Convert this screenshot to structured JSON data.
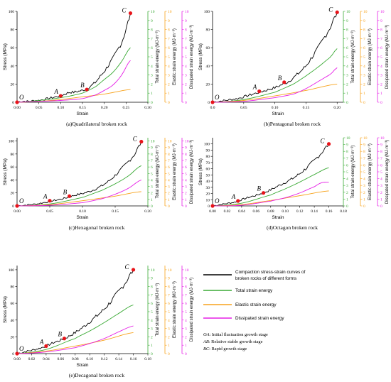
{
  "colors": {
    "stress": "#000000",
    "total": "#3aaa35",
    "elastic": "#f7a21b",
    "dissipated": "#e61ee6",
    "marker": "#e8141a"
  },
  "shared_axis_labels": {
    "y_stress": "Stress (MPa)",
    "x": "Strain",
    "y_total": "Total strain energy (MJ·m⁻³)",
    "y_elastic": "Elastic strain energy (MJ·m⁻³)",
    "y_dissipated": "Dissipated strain energy (MJ·m⁻³)"
  },
  "legend": {
    "stress_line1": "Compaction stress-strain curves of",
    "stress_line2": "broken rocks of different forms",
    "total": "Total strain energy",
    "elastic": "Elastic strain energy",
    "dissipated": "Dissipated strain energy"
  },
  "stage_notes": [
    {
      "key": "OA",
      "text": ": Initial fluctuation growth stage"
    },
    {
      "key": "AB",
      "text": ": Relative stable growth stage"
    },
    {
      "key": "BC",
      "text": ": Rapid growth stage"
    }
  ],
  "chart_data": [
    {
      "type": "line",
      "caption": "(a)Quadrilateral broken rock",
      "xlim": [
        0,
        0.3
      ],
      "xticks": [
        "0.00",
        "0.05",
        "0.10",
        "0.15",
        "0.20",
        "0.25",
        "0.30"
      ],
      "ylim_stress": [
        0,
        100
      ],
      "yticks_stress": [
        "0",
        "20",
        "40",
        "60",
        "80",
        "100"
      ],
      "ylim_energy": [
        0,
        10
      ],
      "yticks_energy": [
        "0",
        "1",
        "2",
        "3",
        "4",
        "5",
        "6",
        "7",
        "8",
        "9",
        "10"
      ],
      "x_end": 0.26,
      "series": [
        {
          "name": "Stress",
          "axis": "stress",
          "x": [
            0,
            0.01,
            0.02,
            0.03,
            0.04,
            0.05,
            0.06,
            0.07,
            0.08,
            0.09,
            0.1,
            0.11,
            0.12,
            0.13,
            0.14,
            0.15,
            0.16,
            0.17,
            0.18,
            0.19,
            0.2,
            0.21,
            0.22,
            0.23,
            0.24,
            0.25,
            0.26
          ],
          "y": [
            0,
            1,
            1,
            1,
            2,
            2,
            3,
            4,
            5,
            6,
            7,
            9,
            11,
            11,
            12,
            13,
            15,
            18,
            22,
            28,
            34,
            41,
            48,
            57,
            66,
            80,
            98
          ]
        },
        {
          "name": "Total strain energy",
          "axis": "energy",
          "x": [
            0,
            0.05,
            0.1,
            0.15,
            0.18,
            0.2,
            0.22,
            0.24,
            0.26
          ],
          "y": [
            0,
            0.2,
            0.5,
            1.0,
            1.7,
            2.5,
            3.3,
            4.5,
            6.0
          ]
        },
        {
          "name": "Elastic strain energy",
          "axis": "energy",
          "x": [
            0,
            0.05,
            0.1,
            0.15,
            0.2,
            0.26
          ],
          "y": [
            0,
            0.1,
            0.3,
            0.6,
            0.9,
            1.4
          ]
        },
        {
          "name": "Dissipated strain energy",
          "axis": "energy",
          "x": [
            0,
            0.05,
            0.1,
            0.15,
            0.18,
            0.2,
            0.22,
            0.24,
            0.26
          ],
          "y": [
            0,
            0.1,
            0.2,
            0.4,
            0.8,
            1.3,
            1.9,
            3.0,
            4.6
          ]
        }
      ],
      "points": [
        {
          "label": "O",
          "x": 0.0,
          "y": 0
        },
        {
          "label": "A",
          "x": 0.1,
          "y": 7
        },
        {
          "label": "B",
          "x": 0.16,
          "y": 14
        },
        {
          "label": "C",
          "x": 0.26,
          "y": 98
        }
      ]
    },
    {
      "type": "line",
      "caption": "(b)Pentagonal broken rock",
      "xlim": [
        0,
        0.21
      ],
      "xticks": [
        "0.0",
        "0.05",
        "0.10",
        "0.15",
        "0.20"
      ],
      "ylim_stress": [
        0,
        100
      ],
      "yticks_stress": [
        "0",
        "20",
        "40",
        "60",
        "80",
        "100"
      ],
      "ylim_energy": [
        0,
        10
      ],
      "yticks_energy": [
        "0",
        "1",
        "2",
        "3",
        "4",
        "5",
        "6",
        "7",
        "8",
        "9",
        "10"
      ],
      "x_end": 0.2,
      "series": [
        {
          "name": "Stress",
          "axis": "stress",
          "x": [
            0,
            0.01,
            0.02,
            0.03,
            0.04,
            0.05,
            0.06,
            0.07,
            0.08,
            0.09,
            0.1,
            0.11,
            0.12,
            0.13,
            0.14,
            0.15,
            0.16,
            0.17,
            0.18,
            0.19,
            0.2
          ],
          "y": [
            0,
            1,
            2,
            3,
            4,
            6,
            8,
            10,
            12,
            14,
            16,
            19,
            22,
            27,
            33,
            40,
            50,
            60,
            72,
            84,
            99
          ]
        },
        {
          "name": "Total strain energy",
          "axis": "energy",
          "x": [
            0,
            0.05,
            0.1,
            0.13,
            0.15,
            0.17,
            0.19,
            0.2
          ],
          "y": [
            0,
            0.3,
            1.1,
            2.0,
            2.9,
            3.9,
            5.0,
            5.9
          ]
        },
        {
          "name": "Elastic strain energy",
          "axis": "energy",
          "x": [
            0,
            0.05,
            0.1,
            0.15,
            0.2
          ],
          "y": [
            0,
            0.2,
            0.7,
            1.3,
            2.0
          ]
        },
        {
          "name": "Dissipated strain energy",
          "axis": "energy",
          "x": [
            0,
            0.05,
            0.1,
            0.13,
            0.15,
            0.17,
            0.19,
            0.2
          ],
          "y": [
            0,
            0.1,
            0.5,
            0.9,
            1.5,
            2.3,
            3.1,
            3.8
          ]
        }
      ],
      "points": [
        {
          "label": "O",
          "x": 0.0,
          "y": 0
        },
        {
          "label": "A",
          "x": 0.075,
          "y": 12
        },
        {
          "label": "B",
          "x": 0.115,
          "y": 22
        },
        {
          "label": "C",
          "x": 0.2,
          "y": 99
        }
      ]
    },
    {
      "type": "line",
      "caption": "(c)Hexagonal broken rock",
      "xlim": [
        0,
        0.2
      ],
      "xticks": [
        "0.00",
        "0.05",
        "0.10",
        "0.15",
        "0.20"
      ],
      "ylim_stress": [
        0,
        105
      ],
      "yticks_stress": [
        "0",
        "20",
        "40",
        "60",
        "80",
        "100"
      ],
      "ylim_energy": [
        0,
        10.5
      ],
      "yticks_energy": [
        "0",
        "1",
        "2",
        "3",
        "4",
        "5",
        "6",
        "7",
        "8",
        "9",
        "10"
      ],
      "x_end": 0.19,
      "series": [
        {
          "name": "Stress",
          "axis": "stress",
          "x": [
            0,
            0.01,
            0.02,
            0.03,
            0.04,
            0.05,
            0.06,
            0.07,
            0.08,
            0.09,
            0.1,
            0.11,
            0.12,
            0.13,
            0.14,
            0.15,
            0.16,
            0.17,
            0.18,
            0.19
          ],
          "y": [
            0,
            1,
            2,
            3,
            5,
            7,
            9,
            11,
            14,
            17,
            19,
            22,
            26,
            31,
            38,
            47,
            57,
            68,
            80,
            99
          ]
        },
        {
          "name": "Total strain energy",
          "axis": "energy",
          "x": [
            0,
            0.05,
            0.1,
            0.13,
            0.15,
            0.17,
            0.19
          ],
          "y": [
            0,
            0.3,
            1.3,
            2.4,
            3.4,
            4.6,
            6.2
          ]
        },
        {
          "name": "Elastic strain energy",
          "axis": "energy",
          "x": [
            0,
            0.05,
            0.1,
            0.15,
            0.19
          ],
          "y": [
            0,
            0.2,
            0.8,
            1.5,
            2.2
          ]
        },
        {
          "name": "Dissipated strain energy",
          "axis": "energy",
          "x": [
            0,
            0.05,
            0.1,
            0.13,
            0.15,
            0.17,
            0.19
          ],
          "y": [
            0,
            0.1,
            0.5,
            1.1,
            1.8,
            2.7,
            4.0
          ]
        }
      ],
      "points": [
        {
          "label": "O",
          "x": 0.0,
          "y": 0
        },
        {
          "label": "A",
          "x": 0.05,
          "y": 8
        },
        {
          "label": "B",
          "x": 0.08,
          "y": 15
        },
        {
          "label": "C",
          "x": 0.19,
          "y": 99
        }
      ]
    },
    {
      "type": "line",
      "caption": "(d)Octagon broken rock",
      "xlim": [
        0,
        0.18
      ],
      "xticks": [
        "0.00",
        "0.02",
        "0.04",
        "0.06",
        "0.08",
        "0.10",
        "0.12",
        "0.14",
        "0.16",
        "0.18"
      ],
      "ylim_stress": [
        0,
        110
      ],
      "yticks_stress": [
        "0",
        "10",
        "20",
        "30",
        "40",
        "50",
        "60",
        "70",
        "80",
        "90",
        "100"
      ],
      "ylim_energy": [
        0,
        10
      ],
      "yticks_energy": [
        "0",
        "1",
        "2",
        "3",
        "4",
        "5",
        "6",
        "7",
        "8",
        "9",
        "10"
      ],
      "x_end": 0.16,
      "series": [
        {
          "name": "Stress",
          "axis": "stress",
          "x": [
            0,
            0.01,
            0.02,
            0.03,
            0.04,
            0.05,
            0.06,
            0.07,
            0.08,
            0.09,
            0.1,
            0.11,
            0.12,
            0.13,
            0.14,
            0.15,
            0.16
          ],
          "y": [
            0,
            2,
            4,
            6,
            10,
            14,
            17,
            21,
            26,
            32,
            38,
            44,
            52,
            62,
            73,
            86,
            100
          ]
        },
        {
          "name": "Total strain energy",
          "axis": "energy",
          "x": [
            0,
            0.04,
            0.08,
            0.1,
            0.12,
            0.14,
            0.16
          ],
          "y": [
            0,
            0.4,
            1.6,
            2.5,
            3.5,
            4.6,
            5.6
          ]
        },
        {
          "name": "Elastic strain energy",
          "axis": "energy",
          "x": [
            0,
            0.04,
            0.08,
            0.12,
            0.16
          ],
          "y": [
            0,
            0.2,
            0.8,
            1.5,
            2.2
          ]
        },
        {
          "name": "Dissipated strain energy",
          "axis": "energy",
          "x": [
            0,
            0.04,
            0.08,
            0.1,
            0.12,
            0.14,
            0.15,
            0.16
          ],
          "y": [
            0,
            0.1,
            0.7,
            1.2,
            1.9,
            2.8,
            3.4,
            3.5
          ]
        }
      ],
      "points": [
        {
          "label": "O",
          "x": 0.0,
          "y": 0
        },
        {
          "label": "A",
          "x": 0.035,
          "y": 8
        },
        {
          "label": "B",
          "x": 0.07,
          "y": 21
        },
        {
          "label": "C",
          "x": 0.16,
          "y": 100
        }
      ]
    },
    {
      "type": "line",
      "caption": "(e)Decagonal broken rock",
      "xlim": [
        0,
        0.18
      ],
      "xticks": [
        "0.00",
        "0.02",
        "0.04",
        "0.06",
        "0.08",
        "0.10",
        "0.12",
        "0.14",
        "0.16",
        "0.18"
      ],
      "ylim_stress": [
        0,
        105
      ],
      "yticks_stress": [
        "0",
        "20",
        "40",
        "60",
        "80",
        "100"
      ],
      "ylim_energy": [
        0,
        10.5
      ],
      "yticks_energy": [
        "0",
        "1",
        "2",
        "3",
        "4",
        "5",
        "6",
        "7",
        "8",
        "9",
        "10"
      ],
      "x_end": 0.16,
      "series": [
        {
          "name": "Stress",
          "axis": "stress",
          "x": [
            0,
            0.01,
            0.02,
            0.03,
            0.04,
            0.05,
            0.06,
            0.07,
            0.08,
            0.09,
            0.1,
            0.11,
            0.12,
            0.13,
            0.14,
            0.15,
            0.16
          ],
          "y": [
            0,
            2,
            4,
            6,
            9,
            13,
            16,
            20,
            25,
            31,
            38,
            45,
            53,
            63,
            74,
            86,
            100
          ]
        },
        {
          "name": "Total strain energy",
          "axis": "energy",
          "x": [
            0,
            0.04,
            0.08,
            0.1,
            0.12,
            0.14,
            0.16
          ],
          "y": [
            0,
            0.5,
            1.8,
            2.7,
            3.7,
            4.8,
            5.8
          ]
        },
        {
          "name": "Elastic strain energy",
          "axis": "energy",
          "x": [
            0,
            0.04,
            0.08,
            0.12,
            0.16
          ],
          "y": [
            0,
            0.3,
            0.9,
            1.6,
            2.5
          ]
        },
        {
          "name": "Dissipated strain energy",
          "axis": "energy",
          "x": [
            0,
            0.04,
            0.08,
            0.1,
            0.12,
            0.14,
            0.16
          ],
          "y": [
            0,
            0.2,
            0.7,
            1.2,
            1.8,
            2.6,
            3.3
          ]
        }
      ],
      "points": [
        {
          "label": "O",
          "x": 0.0,
          "y": 0
        },
        {
          "label": "A",
          "x": 0.04,
          "y": 9
        },
        {
          "label": "B",
          "x": 0.065,
          "y": 18
        },
        {
          "label": "C",
          "x": 0.16,
          "y": 100
        }
      ]
    }
  ]
}
